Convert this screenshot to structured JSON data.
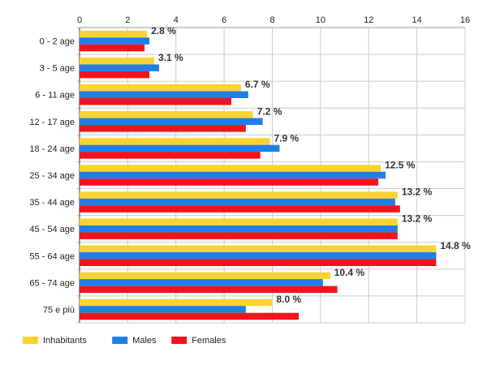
{
  "chart_data": {
    "type": "bar",
    "orientation": "horizontal",
    "categories": [
      "0 - 2 age",
      "3 - 5 age",
      "6 - 11 age",
      "12 - 17 age",
      "18 - 24 age",
      "25 - 34 age",
      "35 - 44 age",
      "45 - 54 age",
      "55 - 64 age",
      "65 - 74 age",
      "75 e più"
    ],
    "series": [
      {
        "name": "Inhabitants",
        "color": "#fbd331",
        "values": [
          2.8,
          3.1,
          6.7,
          7.2,
          7.9,
          12.5,
          13.2,
          13.2,
          14.8,
          10.4,
          8.0
        ]
      },
      {
        "name": "Males",
        "color": "#1e7fe8",
        "values": [
          2.9,
          3.3,
          7.0,
          7.6,
          8.3,
          12.7,
          13.1,
          13.2,
          14.8,
          10.1,
          6.9
        ]
      },
      {
        "name": "Females",
        "color": "#f2141c",
        "values": [
          2.7,
          2.9,
          6.3,
          6.9,
          7.5,
          12.4,
          13.3,
          13.2,
          14.8,
          10.7,
          9.1
        ]
      }
    ],
    "data_labels": [
      "2.8 %",
      "3.1 %",
      "6.7 %",
      "7.2 %",
      "7.9 %",
      "12.5 %",
      "13.2 %",
      "13.2 %",
      "14.8 %",
      "10.4 %",
      "8.0 %"
    ],
    "xlim": [
      0,
      16
    ],
    "x_ticks": [
      0,
      2,
      4,
      6,
      8,
      10,
      12,
      14,
      16
    ],
    "x_axis_position": "top",
    "grid": true,
    "legend_position": "bottom-left",
    "title": "",
    "xlabel": "",
    "ylabel": ""
  }
}
